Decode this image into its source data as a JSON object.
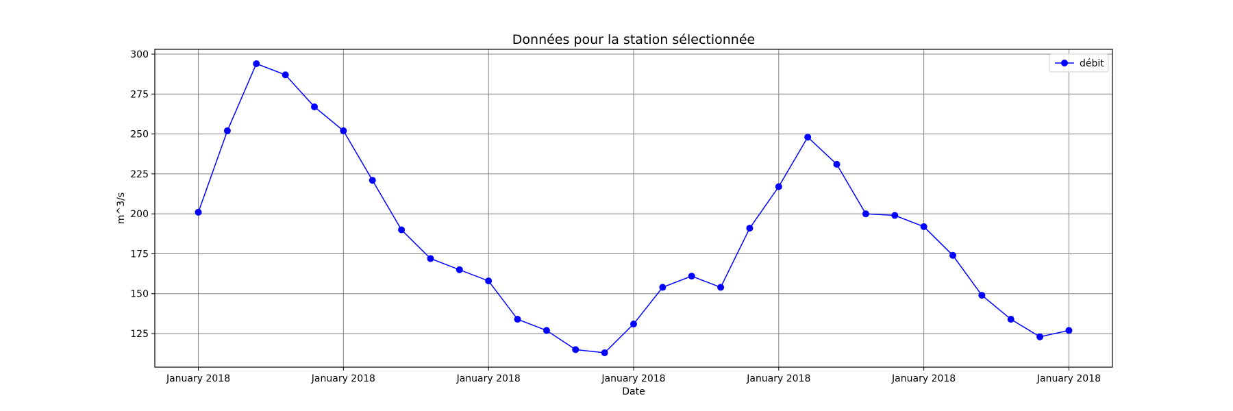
{
  "chart_data": {
    "type": "line",
    "title": "Données pour la station sélectionnée",
    "xlabel": "Date",
    "ylabel": "m^3/s",
    "x_tick_labels": [
      "January 2018",
      "January 2018",
      "January 2018",
      "January 2018",
      "January 2018",
      "January 2018",
      "January 2018"
    ],
    "x_tick_positions": [
      0,
      5,
      10,
      15,
      20,
      25,
      30
    ],
    "xlim": [
      -1.5,
      31.5
    ],
    "y_ticks": [
      125,
      150,
      175,
      200,
      225,
      250,
      275,
      300
    ],
    "ylim": [
      104,
      303
    ],
    "grid": true,
    "legend_position": "top-right",
    "colors": {
      "series": "#0000ff",
      "grid": "#808080",
      "axes": "#000000"
    },
    "series": [
      {
        "name": "débit",
        "marker": "circle",
        "x": [
          0,
          1,
          2,
          3,
          4,
          5,
          6,
          7,
          8,
          9,
          10,
          11,
          12,
          13,
          14,
          15,
          16,
          17,
          18,
          19,
          20,
          21,
          22,
          23,
          24,
          25,
          26,
          27,
          28,
          29,
          30
        ],
        "values": [
          201,
          252,
          294,
          287,
          267,
          252,
          221,
          190,
          172,
          165,
          158,
          134,
          127,
          115,
          113,
          131,
          154,
          161,
          154,
          191,
          217,
          248,
          231,
          200,
          199,
          192,
          174,
          149,
          134,
          123,
          127
        ]
      }
    ]
  }
}
